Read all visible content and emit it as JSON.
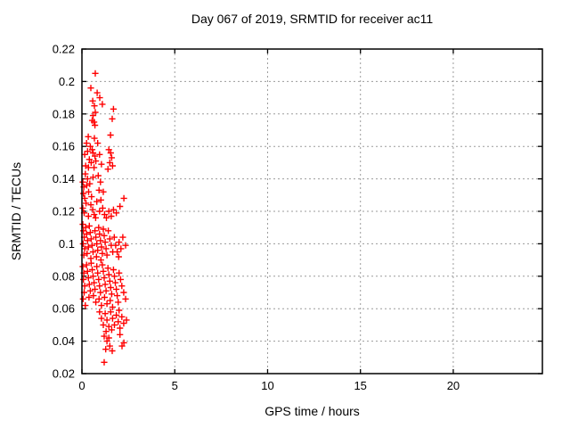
{
  "chart_data": {
    "type": "scatter",
    "title": "Day 067 of 2019, SRMTID for receiver ac11",
    "xlabel": "GPS time / hours",
    "ylabel": "SRMTID / TECUs",
    "xlim": [
      0,
      24.8
    ],
    "ylim": [
      0.02,
      0.22
    ],
    "xticks": [
      0,
      5,
      10,
      15,
      20
    ],
    "xtick_labels": [
      "0",
      "5",
      "10",
      "15",
      "20"
    ],
    "yticks": [
      0.02,
      0.04,
      0.06,
      0.08,
      0.1,
      0.12,
      0.14,
      0.16,
      0.18,
      0.2,
      0.22
    ],
    "ytick_labels": [
      "0.02",
      "0.04",
      "0.06",
      "0.08",
      "0.1",
      "0.12",
      "0.14",
      "0.16",
      "0.18",
      "0.2",
      "0.22"
    ],
    "grid": true,
    "legend": "none",
    "marker": "plus",
    "marker_color": "#ff0000",
    "grid_color": "#9b9b9b",
    "border_color": "#000000",
    "background": "#ffffff",
    "series": [
      {
        "name": "SRMTID",
        "points": [
          [
            0.72,
            0.205
          ],
          [
            0.48,
            0.196
          ],
          [
            0.82,
            0.193
          ],
          [
            0.96,
            0.19
          ],
          [
            0.58,
            0.188
          ],
          [
            1.1,
            0.186
          ],
          [
            0.67,
            0.185
          ],
          [
            0.72,
            0.181
          ],
          [
            1.7,
            0.183
          ],
          [
            0.6,
            0.179
          ],
          [
            1.63,
            0.177
          ],
          [
            0.55,
            0.176
          ],
          [
            0.65,
            0.175
          ],
          [
            0.7,
            0.173
          ],
          [
            1.54,
            0.167
          ],
          [
            0.34,
            0.166
          ],
          [
            0.67,
            0.165
          ],
          [
            0.25,
            0.162
          ],
          [
            0.85,
            0.162
          ],
          [
            0.45,
            0.16
          ],
          [
            0.55,
            0.158
          ],
          [
            1.45,
            0.158
          ],
          [
            0.3,
            0.157
          ],
          [
            0.6,
            0.156
          ],
          [
            1.55,
            0.156
          ],
          [
            0.15,
            0.155
          ],
          [
            0.95,
            0.155
          ],
          [
            0.7,
            0.154
          ],
          [
            1.6,
            0.153
          ],
          [
            0.4,
            0.152
          ],
          [
            0.75,
            0.151
          ],
          [
            0.5,
            0.15
          ],
          [
            1.5,
            0.15
          ],
          [
            1.05,
            0.149
          ],
          [
            0.2,
            0.148
          ],
          [
            1.65,
            0.148
          ],
          [
            0.65,
            0.147
          ],
          [
            0.35,
            0.147
          ],
          [
            1.4,
            0.146
          ],
          [
            0.18,
            0.143
          ],
          [
            0.88,
            0.142
          ],
          [
            0.6,
            0.141
          ],
          [
            0.3,
            0.14
          ],
          [
            0.05,
            0.138
          ],
          [
            1.0,
            0.138
          ],
          [
            0.42,
            0.137
          ],
          [
            0.26,
            0.136
          ],
          [
            0.1,
            0.135
          ],
          [
            0.92,
            0.133
          ],
          [
            0.36,
            0.132
          ],
          [
            1.15,
            0.132
          ],
          [
            0.08,
            0.131
          ],
          [
            0.52,
            0.129
          ],
          [
            0.15,
            0.128
          ],
          [
            1.02,
            0.127
          ],
          [
            2.26,
            0.128
          ],
          [
            0.8,
            0.126
          ],
          [
            0.22,
            0.125
          ],
          [
            0.48,
            0.124
          ],
          [
            2.05,
            0.123
          ],
          [
            0.05,
            0.122
          ],
          [
            1.12,
            0.122
          ],
          [
            0.58,
            0.121
          ],
          [
            1.7,
            0.121
          ],
          [
            0.95,
            0.12
          ],
          [
            0.12,
            0.119
          ],
          [
            1.85,
            0.119
          ],
          [
            0.66,
            0.118
          ],
          [
            1.22,
            0.118
          ],
          [
            1.58,
            0.117
          ],
          [
            0.35,
            0.117
          ],
          [
            0.74,
            0.116
          ],
          [
            1.32,
            0.116
          ],
          [
            1.45,
            0.12
          ],
          [
            0.05,
            0.112
          ],
          [
            0.4,
            0.111
          ],
          [
            0.2,
            0.11
          ],
          [
            0.9,
            0.11
          ],
          [
            1.15,
            0.109
          ],
          [
            0.08,
            0.108
          ],
          [
            0.7,
            0.108
          ],
          [
            1.42,
            0.108
          ],
          [
            0.45,
            0.107
          ],
          [
            0.25,
            0.106
          ],
          [
            0.95,
            0.106
          ],
          [
            1.2,
            0.105
          ],
          [
            0.12,
            0.104
          ],
          [
            0.75,
            0.104
          ],
          [
            1.74,
            0.104
          ],
          [
            2.2,
            0.104
          ],
          [
            0.5,
            0.103
          ],
          [
            1.5,
            0.103
          ],
          [
            0.3,
            0.102
          ],
          [
            1.0,
            0.102
          ],
          [
            1.25,
            0.101
          ],
          [
            2.0,
            0.101
          ],
          [
            0.06,
            0.1
          ],
          [
            0.8,
            0.1
          ],
          [
            0.55,
            0.099
          ],
          [
            1.58,
            0.099
          ],
          [
            1.82,
            0.099
          ],
          [
            2.35,
            0.099
          ],
          [
            0.35,
            0.098
          ],
          [
            1.05,
            0.098
          ],
          [
            0.15,
            0.097
          ],
          [
            1.3,
            0.097
          ],
          [
            2.1,
            0.097
          ],
          [
            0.85,
            0.096
          ],
          [
            0.6,
            0.095
          ],
          [
            1.66,
            0.095
          ],
          [
            1.9,
            0.095
          ],
          [
            0.28,
            0.094
          ],
          [
            1.1,
            0.094
          ],
          [
            0.1,
            0.093
          ],
          [
            1.35,
            0.093
          ],
          [
            0.78,
            0.092
          ],
          [
            0.48,
            0.091
          ],
          [
            1.02,
            0.09
          ],
          [
            1.98,
            0.092
          ],
          [
            0.5,
            0.088
          ],
          [
            1.1,
            0.087
          ],
          [
            0.25,
            0.087
          ],
          [
            0.05,
            0.086
          ],
          [
            0.8,
            0.086
          ],
          [
            1.4,
            0.085
          ],
          [
            0.55,
            0.084
          ],
          [
            1.7,
            0.084
          ],
          [
            0.3,
            0.083
          ],
          [
            0.1,
            0.082
          ],
          [
            0.85,
            0.082
          ],
          [
            2.0,
            0.082
          ],
          [
            1.15,
            0.083
          ],
          [
            1.45,
            0.081
          ],
          [
            0.6,
            0.08
          ],
          [
            1.75,
            0.08
          ],
          [
            0.35,
            0.079
          ],
          [
            0.08,
            0.078
          ],
          [
            0.9,
            0.078
          ],
          [
            1.2,
            0.079
          ],
          [
            2.08,
            0.078
          ],
          [
            1.5,
            0.077
          ],
          [
            0.65,
            0.076
          ],
          [
            1.8,
            0.076
          ],
          [
            0.4,
            0.075
          ],
          [
            0.15,
            0.074
          ],
          [
            0.95,
            0.074
          ],
          [
            1.25,
            0.075
          ],
          [
            2.15,
            0.074
          ],
          [
            1.55,
            0.073
          ],
          [
            0.7,
            0.072
          ],
          [
            1.85,
            0.072
          ],
          [
            0.45,
            0.071
          ],
          [
            0.12,
            0.07
          ],
          [
            1.0,
            0.07
          ],
          [
            1.3,
            0.071
          ],
          [
            2.25,
            0.07
          ],
          [
            1.6,
            0.069
          ],
          [
            0.62,
            0.068
          ],
          [
            1.9,
            0.068
          ],
          [
            0.38,
            0.067
          ],
          [
            1.22,
            0.067
          ],
          [
            0.06,
            0.066
          ],
          [
            0.92,
            0.066
          ],
          [
            2.35,
            0.066
          ],
          [
            1.52,
            0.065
          ],
          [
            0.75,
            0.064
          ],
          [
            1.95,
            0.064
          ],
          [
            1.35,
            0.063
          ],
          [
            0.18,
            0.062
          ],
          [
            1.05,
            0.062
          ],
          [
            1.65,
            0.061
          ],
          [
            2.0,
            0.059
          ],
          [
            0.95,
            0.058
          ],
          [
            1.55,
            0.058
          ],
          [
            1.25,
            0.057
          ],
          [
            1.85,
            0.056
          ],
          [
            2.15,
            0.055
          ],
          [
            1.05,
            0.054
          ],
          [
            1.65,
            0.054
          ],
          [
            1.35,
            0.053
          ],
          [
            2.4,
            0.053
          ],
          [
            1.95,
            0.052
          ],
          [
            2.25,
            0.051
          ],
          [
            1.15,
            0.05
          ],
          [
            1.75,
            0.05
          ],
          [
            1.45,
            0.049
          ],
          [
            2.05,
            0.048
          ],
          [
            1.6,
            0.047
          ],
          [
            1.3,
            0.046
          ],
          [
            2.05,
            0.044
          ],
          [
            1.2,
            0.043
          ],
          [
            1.45,
            0.042
          ],
          [
            1.35,
            0.04
          ],
          [
            2.26,
            0.039
          ],
          [
            1.5,
            0.037
          ],
          [
            2.16,
            0.037
          ],
          [
            1.28,
            0.035
          ],
          [
            1.63,
            0.034
          ],
          [
            1.2,
            0.027
          ]
        ]
      }
    ]
  }
}
